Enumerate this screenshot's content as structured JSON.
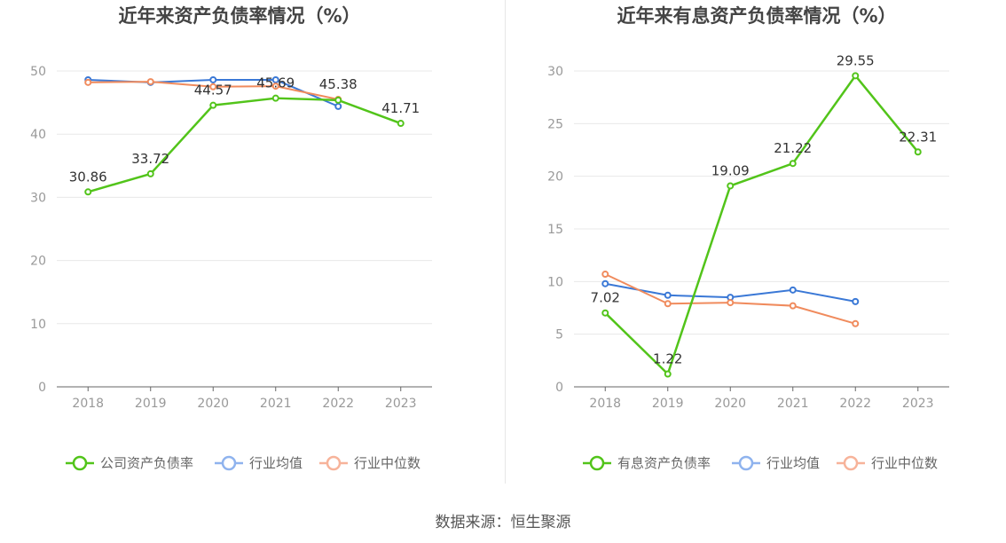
{
  "colors": {
    "main": "#52c41a",
    "avg": "#3a78d6",
    "median": "#f08b5d",
    "legend_avg": "#8fb3ee",
    "legend_median": "#f7b39a",
    "axis_text": "#999999",
    "title_text": "#444444",
    "label_text": "#333333",
    "legend_text": "#666666",
    "grid": "#e8e8e8"
  },
  "source_text": "数据来源：恒生聚源",
  "chart_data": [
    {
      "type": "line",
      "title": "近年来资产负债率情况（%）",
      "categories": [
        "2018",
        "2019",
        "2020",
        "2021",
        "2022",
        "2023"
      ],
      "ylim": [
        0,
        50
      ],
      "yticks": [
        0,
        10,
        20,
        30,
        40,
        50
      ],
      "grid": true,
      "legend_position": "bottom",
      "series": [
        {
          "name": "公司资产负债率",
          "role": "main",
          "values": [
            30.86,
            33.72,
            44.57,
            45.69,
            45.38,
            41.71
          ],
          "labels": [
            "30.86",
            "33.72",
            "44.57",
            "45.69",
            "45.38",
            "41.71"
          ]
        },
        {
          "name": "行业均值",
          "role": "avg",
          "values": [
            48.6,
            48.2,
            48.6,
            48.6,
            44.4,
            null
          ]
        },
        {
          "name": "行业中位数",
          "role": "median",
          "values": [
            48.2,
            48.3,
            47.5,
            47.6,
            45.5,
            null
          ]
        }
      ]
    },
    {
      "type": "line",
      "title": "近年来有息资产负债率情况（%）",
      "categories": [
        "2018",
        "2019",
        "2020",
        "2021",
        "2022",
        "2023"
      ],
      "ylim": [
        0,
        30
      ],
      "yticks": [
        0,
        5,
        10,
        15,
        20,
        25,
        30
      ],
      "grid": true,
      "legend_position": "bottom",
      "series": [
        {
          "name": "有息资产负债率",
          "role": "main",
          "values": [
            7.02,
            1.22,
            19.09,
            21.22,
            29.55,
            22.31
          ],
          "labels": [
            "7.02",
            "1.22",
            "19.09",
            "21.22",
            "29.55",
            "22.31"
          ]
        },
        {
          "name": "行业均值",
          "role": "avg",
          "values": [
            9.8,
            8.7,
            8.5,
            9.2,
            8.1,
            null
          ]
        },
        {
          "name": "行业中位数",
          "role": "median",
          "values": [
            10.7,
            7.9,
            8.0,
            7.7,
            6.0,
            null
          ]
        }
      ]
    }
  ]
}
